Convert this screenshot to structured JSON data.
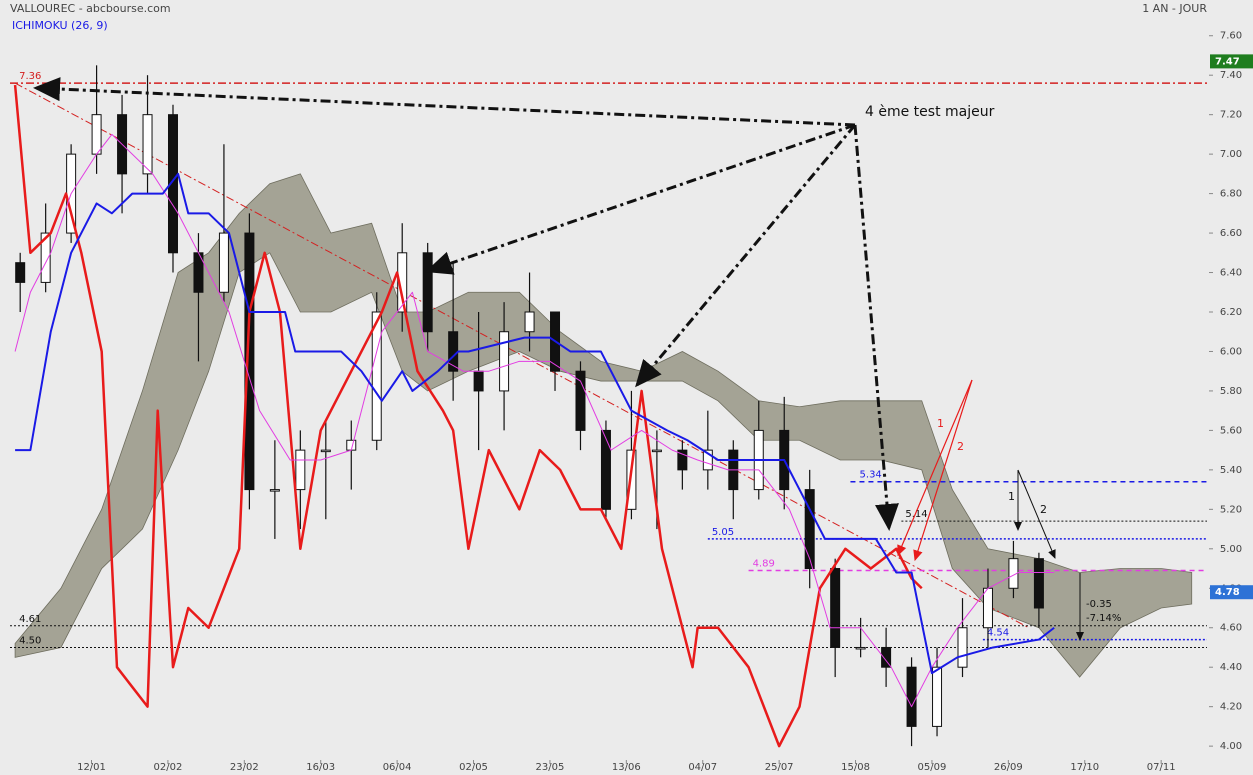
{
  "chart_data": {
    "type": "candlestick",
    "title": "VALLOUREC - abcbourse.com",
    "period": "1 AN - JOUR",
    "indicator": "ICHIMOKU (26, 9)",
    "indicator_color": "#1a1ae6",
    "xlim": [
      0,
      235
    ],
    "ylim": [
      3.95,
      7.7
    ],
    "xticks": [
      {
        "value": 16,
        "label": "12/01"
      },
      {
        "value": 31,
        "label": "02/02"
      },
      {
        "value": 46,
        "label": "23/02"
      },
      {
        "value": 61,
        "label": "16/03"
      },
      {
        "value": 76,
        "label": "06/04"
      },
      {
        "value": 91,
        "label": "02/05"
      },
      {
        "value": 106,
        "label": "23/05"
      },
      {
        "value": 121,
        "label": "13/06"
      },
      {
        "value": 136,
        "label": "04/07"
      },
      {
        "value": 151,
        "label": "25/07"
      },
      {
        "value": 166,
        "label": "15/08"
      },
      {
        "value": 181,
        "label": "05/09"
      },
      {
        "value": 196,
        "label": "26/09"
      },
      {
        "value": 211,
        "label": "17/10"
      },
      {
        "value": 226,
        "label": "07/11"
      }
    ],
    "yticks": [
      {
        "value": 4.0,
        "label": "4.00"
      },
      {
        "value": 4.2,
        "label": "4.20"
      },
      {
        "value": 4.4,
        "label": "4.40"
      },
      {
        "value": 4.6,
        "label": "4.60"
      },
      {
        "value": 4.8,
        "label": "4.80"
      },
      {
        "value": 5.0,
        "label": "5.00"
      },
      {
        "value": 5.2,
        "label": "5.20"
      },
      {
        "value": 5.4,
        "label": "5.40"
      },
      {
        "value": 5.6,
        "label": "5.60"
      },
      {
        "value": 5.8,
        "label": "5.80"
      },
      {
        "value": 6.0,
        "label": "6.00"
      },
      {
        "value": 6.2,
        "label": "6.20"
      },
      {
        "value": 6.4,
        "label": "6.40"
      },
      {
        "value": 6.6,
        "label": "6.60"
      },
      {
        "value": 6.8,
        "label": "6.80"
      },
      {
        "value": 7.0,
        "label": "7.00"
      },
      {
        "value": 7.2,
        "label": "7.20"
      },
      {
        "value": 7.4,
        "label": "7.40"
      },
      {
        "value": 7.6,
        "label": "7.60"
      }
    ],
    "cloud": {
      "color": "#8c8b78",
      "x": [
        1,
        10,
        18,
        26,
        33,
        39,
        45,
        51,
        57,
        63,
        71,
        77,
        82,
        90,
        100,
        108,
        116,
        124,
        132,
        139,
        147,
        155,
        163,
        171,
        179,
        185,
        192,
        202,
        210,
        218,
        226,
        232
      ],
      "upper": [
        4.52,
        4.8,
        5.2,
        5.8,
        6.4,
        6.5,
        6.7,
        6.85,
        6.9,
        6.6,
        6.65,
        6.2,
        6.2,
        6.3,
        6.3,
        6.1,
        5.95,
        5.9,
        6.0,
        5.9,
        5.75,
        5.72,
        5.75,
        5.75,
        5.75,
        5.3,
        5.0,
        4.95,
        4.88,
        4.9,
        4.9,
        4.88
      ],
      "lower": [
        4.45,
        4.5,
        4.9,
        5.1,
        5.5,
        5.9,
        6.4,
        6.5,
        6.2,
        6.2,
        6.3,
        5.9,
        5.8,
        5.9,
        6.0,
        5.9,
        5.85,
        5.85,
        5.85,
        5.75,
        5.55,
        5.55,
        5.45,
        5.45,
        5.4,
        4.9,
        4.7,
        4.6,
        4.35,
        4.6,
        4.7,
        4.72
      ]
    },
    "candles": {
      "x": [
        2,
        7,
        12,
        17,
        22,
        27,
        32,
        37,
        42,
        47,
        52,
        57,
        62,
        67,
        72,
        77,
        82,
        87,
        92,
        97,
        102,
        107,
        112,
        117,
        122,
        127,
        132,
        137,
        142,
        147,
        152,
        157,
        162,
        167,
        172,
        177,
        182,
        187,
        192,
        197,
        202
      ],
      "ohlc": [
        [
          6.45,
          6.5,
          6.2,
          6.35
        ],
        [
          6.35,
          6.75,
          6.3,
          6.6
        ],
        [
          6.6,
          7.05,
          6.55,
          7.0
        ],
        [
          7.0,
          7.45,
          6.9,
          7.2
        ],
        [
          7.2,
          7.3,
          6.7,
          6.9
        ],
        [
          6.9,
          7.4,
          6.8,
          7.2
        ],
        [
          7.2,
          7.25,
          6.4,
          6.5
        ],
        [
          6.5,
          6.6,
          5.95,
          6.3
        ],
        [
          6.3,
          7.05,
          6.25,
          6.6
        ],
        [
          6.6,
          6.7,
          5.2,
          5.3
        ],
        [
          5.3,
          5.55,
          5.05,
          5.3
        ],
        [
          5.3,
          5.6,
          5.1,
          5.5
        ],
        [
          5.5,
          5.65,
          5.15,
          5.5
        ],
        [
          5.5,
          5.65,
          5.3,
          5.55
        ],
        [
          5.55,
          6.3,
          5.5,
          6.2
        ],
        [
          6.2,
          6.65,
          6.1,
          6.5
        ],
        [
          6.5,
          6.55,
          6.0,
          6.1
        ],
        [
          6.1,
          6.45,
          5.75,
          5.9
        ],
        [
          5.9,
          6.2,
          5.5,
          5.8
        ],
        [
          5.8,
          6.25,
          5.6,
          6.1
        ],
        [
          6.1,
          6.4,
          6.0,
          6.2
        ],
        [
          6.2,
          6.2,
          5.8,
          5.9
        ],
        [
          5.9,
          5.95,
          5.5,
          5.6
        ],
        [
          5.6,
          5.65,
          5.15,
          5.2
        ],
        [
          5.2,
          5.8,
          5.15,
          5.5
        ],
        [
          5.5,
          5.6,
          5.1,
          5.5
        ],
        [
          5.5,
          5.55,
          5.3,
          5.4
        ],
        [
          5.4,
          5.7,
          5.3,
          5.5
        ],
        [
          5.5,
          5.55,
          5.15,
          5.3
        ],
        [
          5.3,
          5.75,
          5.25,
          5.6
        ],
        [
          5.6,
          5.77,
          5.2,
          5.3
        ],
        [
          5.3,
          5.4,
          4.8,
          4.9
        ],
        [
          4.9,
          4.95,
          4.35,
          4.5
        ],
        [
          4.5,
          4.65,
          4.45,
          4.5
        ],
        [
          4.5,
          4.6,
          4.3,
          4.4
        ],
        [
          4.4,
          4.45,
          4.0,
          4.1
        ],
        [
          4.1,
          4.5,
          4.05,
          4.4
        ],
        [
          4.4,
          4.75,
          4.35,
          4.6
        ],
        [
          4.6,
          4.9,
          4.5,
          4.8
        ],
        [
          4.8,
          5.04,
          4.75,
          4.95
        ],
        [
          4.95,
          4.98,
          4.6,
          4.7
        ]
      ]
    },
    "series": [
      {
        "name": "chikou",
        "color": "#e81b1b",
        "width": 2.5,
        "x": [
          1,
          4,
          8,
          11,
          14,
          18,
          21,
          24,
          27,
          29,
          32,
          35,
          39,
          45,
          47,
          50,
          53,
          57,
          61,
          65,
          69,
          73,
          76,
          80,
          85,
          87,
          90,
          94,
          100,
          104,
          108,
          112,
          116,
          120,
          124,
          128,
          132,
          134,
          135,
          139,
          145,
          151,
          155,
          159,
          164,
          169,
          174,
          177,
          179
        ],
        "values": [
          7.35,
          6.5,
          6.6,
          6.8,
          6.5,
          6.0,
          4.4,
          4.3,
          4.2,
          5.7,
          4.4,
          4.7,
          4.6,
          5.0,
          6.2,
          6.5,
          6.2,
          5.0,
          5.6,
          5.8,
          6.0,
          6.2,
          6.4,
          5.9,
          5.7,
          5.6,
          5.0,
          5.5,
          5.2,
          5.5,
          5.4,
          5.2,
          5.2,
          5.0,
          5.8,
          5.0,
          4.6,
          4.4,
          4.6,
          4.6,
          4.4,
          4.0,
          4.2,
          4.8,
          5.0,
          4.9,
          5.0,
          4.85,
          4.8
        ]
      },
      {
        "name": "tenkan",
        "color": "#e23de2",
        "width": 1,
        "x": [
          1,
          4,
          8,
          12,
          17,
          20,
          28,
          33,
          37,
          43,
          49,
          55,
          61,
          67,
          73,
          79,
          82,
          89,
          94,
          100,
          106,
          112,
          118,
          124,
          130,
          135,
          141,
          147,
          153,
          157,
          161,
          167,
          173,
          177,
          181,
          186,
          192,
          198,
          205
        ],
        "values": [
          6.0,
          6.3,
          6.5,
          6.8,
          7.0,
          7.1,
          6.9,
          6.7,
          6.5,
          6.2,
          5.7,
          5.45,
          5.45,
          5.5,
          6.1,
          6.3,
          6.0,
          5.9,
          5.9,
          5.95,
          5.95,
          5.85,
          5.5,
          5.6,
          5.5,
          5.45,
          5.4,
          5.4,
          5.2,
          4.95,
          4.6,
          4.6,
          4.4,
          4.2,
          4.4,
          4.6,
          4.8,
          4.88,
          4.88
        ]
      },
      {
        "name": "kijun",
        "color": "#1a1ae6",
        "width": 2,
        "x": [
          1,
          4,
          6,
          8,
          12,
          17,
          20,
          24,
          30,
          33,
          35,
          39,
          43,
          45,
          47,
          54,
          56,
          65,
          69,
          73,
          77,
          79,
          84,
          88,
          90,
          101,
          106,
          110,
          116,
          122,
          129,
          133,
          139,
          146,
          152,
          155,
          160,
          170,
          174,
          177,
          181,
          186,
          193,
          202,
          205
        ],
        "values": [
          5.5,
          5.5,
          5.8,
          6.1,
          6.5,
          6.75,
          6.7,
          6.8,
          6.8,
          6.9,
          6.7,
          6.7,
          6.6,
          6.4,
          6.2,
          6.2,
          6.0,
          6.0,
          5.9,
          5.75,
          5.9,
          5.8,
          5.9,
          6.0,
          6.0,
          6.07,
          6.07,
          6.0,
          6.0,
          5.7,
          5.6,
          5.55,
          5.45,
          5.45,
          5.45,
          5.3,
          5.05,
          5.05,
          4.88,
          4.88,
          4.37,
          4.45,
          4.5,
          4.54,
          4.6
        ]
      }
    ],
    "levels": [
      {
        "value": 7.36,
        "label": "7.36",
        "color": "#d42020",
        "dash": "8 3 2 3",
        "x_start": 0,
        "label_x": 1
      },
      {
        "value": 5.34,
        "label": "5.34",
        "color": "#1a1ae6",
        "dash": "5 4",
        "x_start": 165,
        "label_x": 166
      },
      {
        "value": 5.14,
        "label": "5.14",
        "color": "#111111",
        "dash": "2 2",
        "x_start": 175,
        "label_x": 175
      },
      {
        "value": 5.05,
        "label": "5.05",
        "color": "#1a1ae6",
        "dash": "2 2",
        "x_start": 137,
        "label_x": 137
      },
      {
        "value": 4.89,
        "label": "4.89",
        "color": "#e23de2",
        "dash": "5 4",
        "x_start": 145,
        "label_x": 145
      },
      {
        "value": 4.61,
        "label": "4.61",
        "color": "#111111",
        "dash": "2 2",
        "x_start": 0,
        "label_x": 1
      },
      {
        "value": 4.5,
        "label": "4.50",
        "color": "#111111",
        "dash": "2 2",
        "x_start": 0,
        "label_x": 1
      },
      {
        "value": 4.54,
        "label": "4.54",
        "color": "#1a1ae6",
        "dash": "2 2",
        "x_start": 191,
        "label_x": 191
      }
    ],
    "trendline": {
      "color": "#d42020",
      "x": [
        1,
        200
      ],
      "values": [
        7.36,
        4.6
      ]
    },
    "price_tags": [
      {
        "value": 7.47,
        "label": "7.47",
        "color": "#1e7d1e"
      },
      {
        "value": 4.78,
        "label": "4.78",
        "color": "#2d72d6"
      }
    ],
    "annotations": [
      "4 ème test majeur",
      "1",
      "2",
      "1",
      "2",
      "-0.35",
      "-7.14%"
    ]
  }
}
